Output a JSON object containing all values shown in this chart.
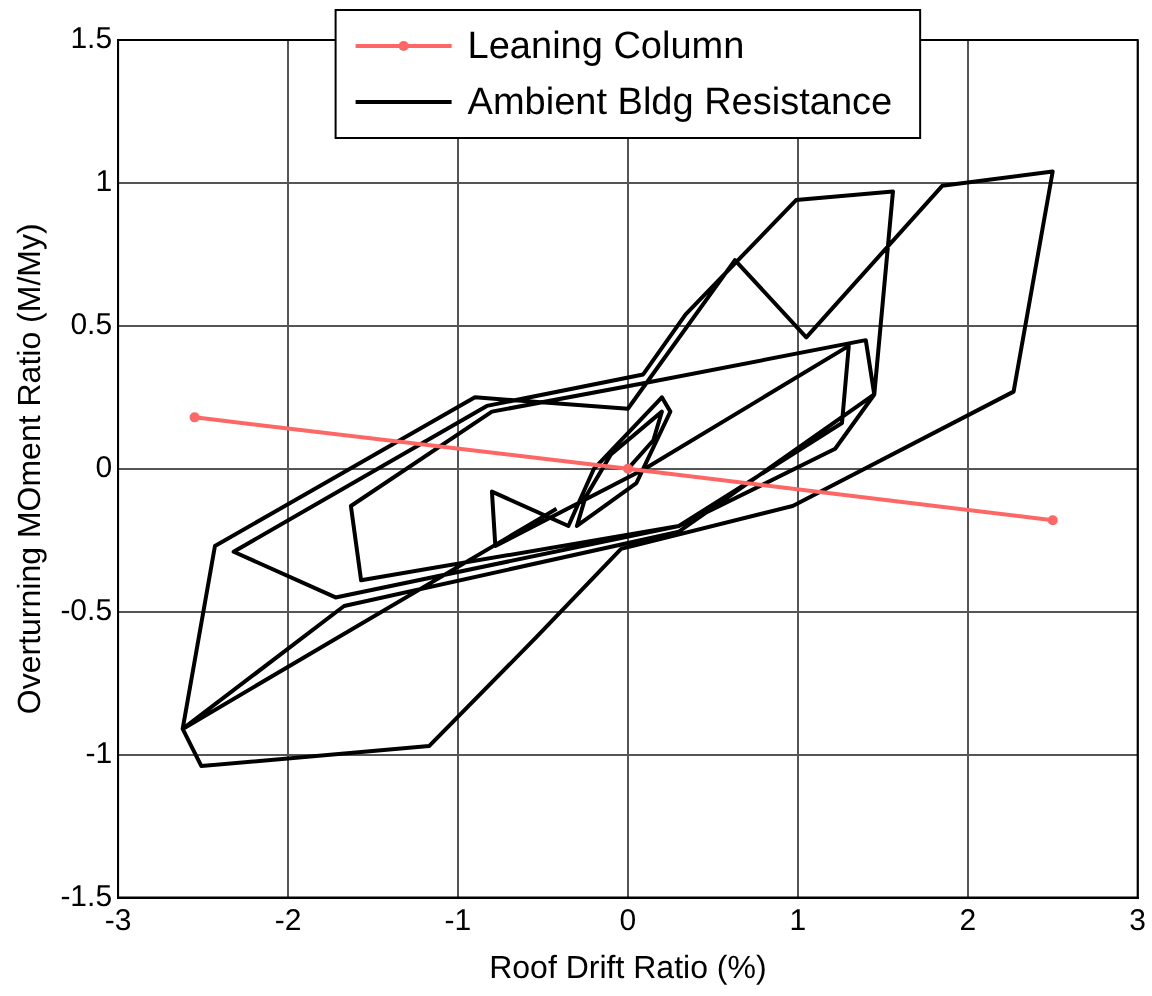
{
  "chart_data": {
    "type": "line",
    "xlabel": "Roof Drift Ratio (%)",
    "ylabel": "Overturning MOment Ratio (M/My)",
    "xlim": [
      -3,
      3
    ],
    "xticks": [
      -3,
      -2,
      -1,
      0,
      1,
      2,
      3
    ],
    "ylim": [
      -1.5,
      1.5
    ],
    "yticks": [
      -1.5,
      -1,
      -0.5,
      0,
      0.5,
      1,
      1.5
    ],
    "grid": true,
    "legend": "top",
    "series": [
      {
        "name": "Leaning Column",
        "color": "#ff6666",
        "marker": "circle",
        "x": [
          -2.55,
          0,
          2.5
        ],
        "values": [
          0.18,
          0,
          -0.18
        ]
      },
      {
        "name": "Ambient Bldg Resistance",
        "color": "#000000",
        "marker": "none",
        "x": [
          0,
          0.15,
          0.2,
          -0.1,
          -0.25,
          -0.3,
          0.05,
          0.25,
          0.2,
          -0.2,
          -0.35,
          -0.8,
          -0.78,
          0.1,
          1.3,
          1.26,
          0.3,
          -1.57,
          -1.63,
          -0.8,
          0.1,
          1.4,
          1.45,
          1.22,
          0.3,
          -1.72,
          -2.32,
          -0.83,
          0.09,
          0.34,
          0.99,
          1.56,
          1.45,
          0.3,
          -1.67,
          -2.62,
          -2.43,
          -0.9,
          0,
          0.63,
          1.05,
          1.85,
          2.5,
          2.27,
          0.97,
          -0.04,
          -0.54,
          -1.17,
          -2.51,
          -2.62,
          -0.42
        ],
        "values": [
          0,
          0.1,
          0.2,
          0.05,
          -0.1,
          -0.2,
          -0.05,
          0.2,
          0.25,
          0,
          -0.2,
          -0.08,
          -0.27,
          0,
          0.43,
          0.16,
          -0.2,
          -0.39,
          -0.13,
          0.2,
          0.3,
          0.45,
          0.26,
          0.07,
          -0.2,
          -0.45,
          -0.29,
          0.22,
          0.33,
          0.54,
          0.94,
          0.97,
          0.26,
          -0.22,
          -0.48,
          -0.91,
          -0.27,
          0.25,
          0.21,
          0.73,
          0.46,
          0.99,
          1.04,
          0.27,
          -0.13,
          -0.28,
          -0.59,
          -0.97,
          -1.04,
          -0.91,
          -0.14
        ]
      }
    ]
  }
}
